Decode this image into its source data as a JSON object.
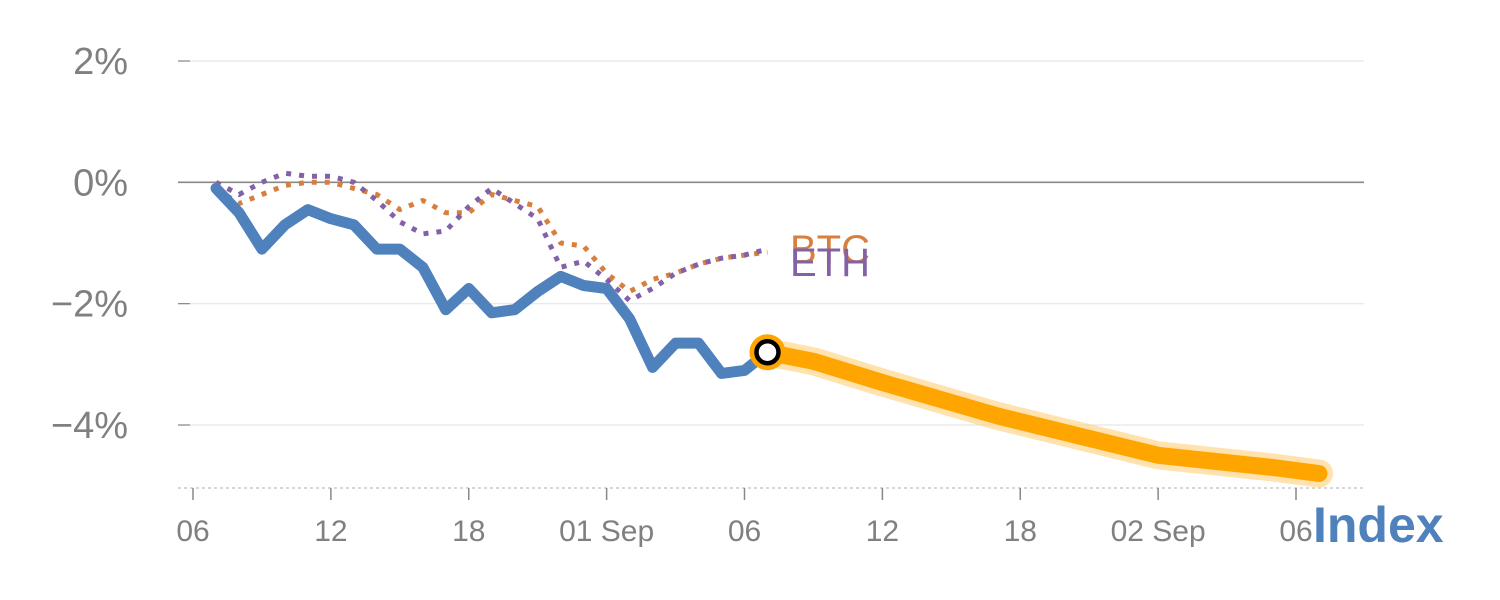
{
  "chart_data": {
    "type": "line",
    "y_unit": "%",
    "ylim": [
      -5,
      2
    ],
    "y_ticks": [
      2,
      0,
      -2,
      -4
    ],
    "y_tick_labels": [
      "2%",
      "0%",
      "−2%",
      "−4%"
    ],
    "x_tick_labels": [
      "06",
      "12",
      "18",
      "01 Sep",
      "06",
      "12",
      "18",
      "02 Sep",
      "06"
    ],
    "x_ticks_day": [
      0,
      6,
      12,
      18,
      24,
      30,
      36,
      42,
      48
    ],
    "xlim_day": [
      -0.6,
      51
    ],
    "zero_line": true,
    "grid": true,
    "series": [
      {
        "name": "BTC",
        "label": "BTC",
        "style": "dotted",
        "color": "#d97f3e",
        "x_day": [
          1,
          2,
          3,
          4,
          5,
          6,
          7,
          8,
          9,
          10,
          11,
          12,
          13,
          14,
          15,
          16,
          17,
          18,
          19,
          20,
          21,
          22,
          23,
          24,
          25
        ],
        "y": [
          -0.1,
          -0.35,
          -0.2,
          -0.05,
          0.0,
          0.0,
          -0.1,
          -0.2,
          -0.45,
          -0.3,
          -0.5,
          -0.5,
          -0.2,
          -0.3,
          -0.4,
          -1.0,
          -1.05,
          -1.5,
          -1.8,
          -1.6,
          -1.5,
          -1.35,
          -1.25,
          -1.2,
          -1.15
        ]
      },
      {
        "name": "ETH",
        "label": "ETH",
        "style": "dotted",
        "color": "#8361a6",
        "x_day": [
          1,
          2,
          3,
          4,
          5,
          6,
          7,
          8,
          9,
          10,
          11,
          12,
          13,
          14,
          15,
          16,
          17,
          18,
          19,
          20,
          21,
          22,
          23,
          24,
          25
        ],
        "y": [
          0.0,
          -0.2,
          0.0,
          0.15,
          0.1,
          0.1,
          0.0,
          -0.3,
          -0.65,
          -0.85,
          -0.8,
          -0.4,
          -0.1,
          -0.35,
          -0.6,
          -1.4,
          -1.3,
          -1.6,
          -1.95,
          -1.75,
          -1.5,
          -1.35,
          -1.25,
          -1.2,
          -1.1
        ]
      },
      {
        "name": "Index",
        "label": "Index",
        "style": "solid",
        "color": "#4f81bd",
        "x_day": [
          1,
          2,
          3,
          4,
          5,
          6,
          7,
          8,
          9,
          10,
          11,
          12,
          13,
          14,
          15,
          16,
          17,
          18,
          19,
          20,
          21,
          22,
          23,
          24,
          25
        ],
        "y": [
          -0.1,
          -0.5,
          -1.1,
          -0.7,
          -0.45,
          -0.6,
          -0.7,
          -1.1,
          -1.1,
          -1.4,
          -2.1,
          -1.75,
          -2.15,
          -2.1,
          -1.8,
          -1.55,
          -1.7,
          -1.75,
          -2.25,
          -3.05,
          -2.65,
          -2.65,
          -3.15,
          -3.1,
          -2.8
        ]
      },
      {
        "name": "Index forecast",
        "style": "solid",
        "color": "#ffa500",
        "x_day": [
          25,
          27,
          30,
          35,
          42,
          47,
          49
        ],
        "y": [
          -2.8,
          -2.95,
          -3.3,
          -3.85,
          -4.5,
          -4.7,
          -4.8
        ]
      }
    ],
    "marker": {
      "x_day": 25,
      "y": -2.8,
      "series": "Index"
    }
  }
}
